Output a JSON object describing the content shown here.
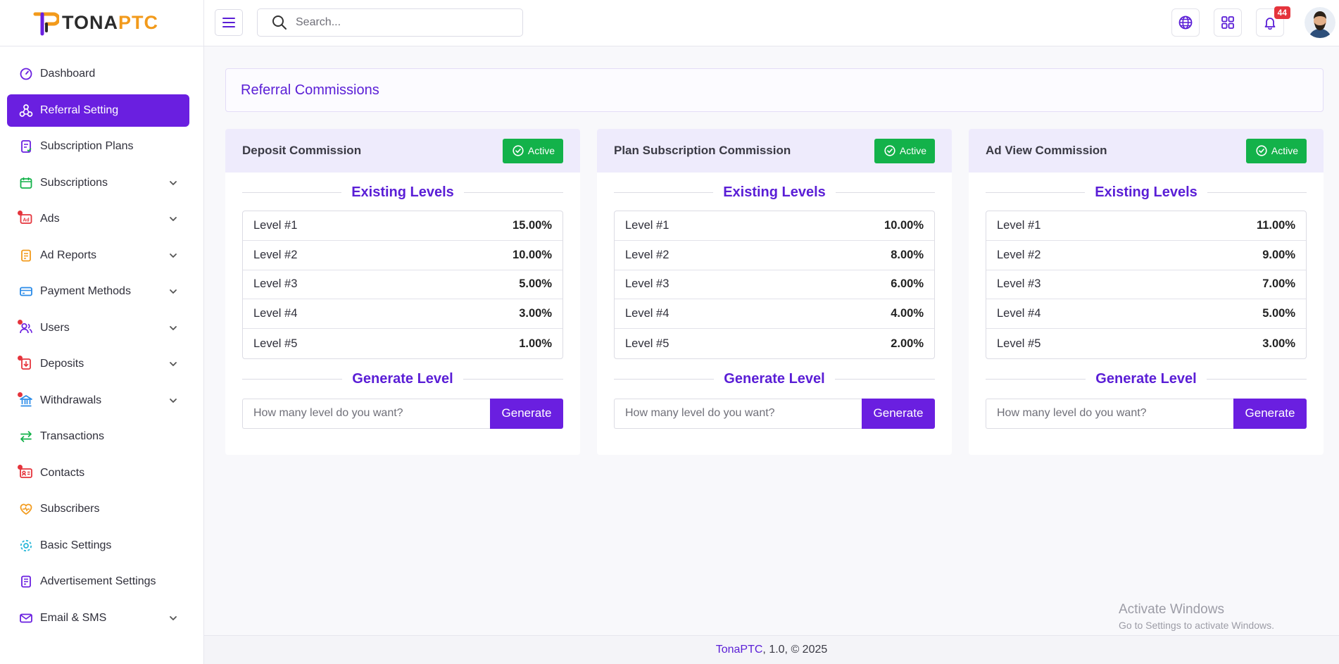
{
  "brand": {
    "logo_prefix": "TONA",
    "logo_suffix": "PTC"
  },
  "sidebar": {
    "items": [
      {
        "label": "Dashboard",
        "icon": "dashboard-icon",
        "color": "#6a1fe0",
        "active": false,
        "chevron": false,
        "dot": false
      },
      {
        "label": "Referral Setting",
        "icon": "referral-icon",
        "color": "#ffffff",
        "active": true,
        "chevron": false,
        "dot": false
      },
      {
        "label": "Subscription Plans",
        "icon": "plans-icon",
        "color": "#6a1fe0",
        "active": false,
        "chevron": false,
        "dot": false
      },
      {
        "label": "Subscriptions",
        "icon": "subscriptions-icon",
        "color": "#13b24a",
        "active": false,
        "chevron": true,
        "dot": false
      },
      {
        "label": "Ads",
        "icon": "ads-icon",
        "color": "#e5343c",
        "active": false,
        "chevron": true,
        "dot": true
      },
      {
        "label": "Ad Reports",
        "icon": "ad-reports-icon",
        "color": "#f29a1b",
        "active": false,
        "chevron": true,
        "dot": false
      },
      {
        "label": "Payment Methods",
        "icon": "payment-icon",
        "color": "#2a8be8",
        "active": false,
        "chevron": true,
        "dot": false
      },
      {
        "label": "Users",
        "icon": "users-icon",
        "color": "#6a1fe0",
        "active": false,
        "chevron": true,
        "dot": true
      },
      {
        "label": "Deposits",
        "icon": "deposits-icon",
        "color": "#e5343c",
        "active": false,
        "chevron": true,
        "dot": true
      },
      {
        "label": "Withdrawals",
        "icon": "withdrawals-icon",
        "color": "#2a8be8",
        "active": false,
        "chevron": true,
        "dot": true
      },
      {
        "label": "Transactions",
        "icon": "transactions-icon",
        "color": "#13b24a",
        "active": false,
        "chevron": false,
        "dot": false
      },
      {
        "label": "Contacts",
        "icon": "contacts-icon",
        "color": "#e5343c",
        "active": false,
        "chevron": false,
        "dot": true
      },
      {
        "label": "Subscribers",
        "icon": "subscribers-icon",
        "color": "#f29a1b",
        "active": false,
        "chevron": false,
        "dot": false
      },
      {
        "label": "Basic Settings",
        "icon": "settings-icon",
        "color": "#2ab8d8",
        "active": false,
        "chevron": false,
        "dot": false
      },
      {
        "label": "Advertisement Settings",
        "icon": "ad-settings-icon",
        "color": "#6a1fe0",
        "active": false,
        "chevron": false,
        "dot": false
      },
      {
        "label": "Email & SMS",
        "icon": "mail-icon",
        "color": "#6a1fe0",
        "active": false,
        "chevron": true,
        "dot": false
      }
    ]
  },
  "header": {
    "search_placeholder": "Search...",
    "notification_count": "44"
  },
  "page": {
    "title": "Referral Commissions"
  },
  "cards": [
    {
      "name": "Deposit Commission",
      "status": "Active",
      "existing_title": "Existing Levels",
      "levels": [
        {
          "label": "Level #1",
          "value": "15.00%"
        },
        {
          "label": "Level #2",
          "value": "10.00%"
        },
        {
          "label": "Level #3",
          "value": "5.00%"
        },
        {
          "label": "Level #4",
          "value": "3.00%"
        },
        {
          "label": "Level #5",
          "value": "1.00%"
        }
      ],
      "generate_title": "Generate Level",
      "input_placeholder": "How many level do you want?",
      "button": "Generate"
    },
    {
      "name": "Plan Subscription Commission",
      "status": "Active",
      "existing_title": "Existing Levels",
      "levels": [
        {
          "label": "Level #1",
          "value": "10.00%"
        },
        {
          "label": "Level #2",
          "value": "8.00%"
        },
        {
          "label": "Level #3",
          "value": "6.00%"
        },
        {
          "label": "Level #4",
          "value": "4.00%"
        },
        {
          "label": "Level #5",
          "value": "2.00%"
        }
      ],
      "generate_title": "Generate Level",
      "input_placeholder": "How many level do you want?",
      "button": "Generate"
    },
    {
      "name": "Ad View Commission",
      "status": "Active",
      "existing_title": "Existing Levels",
      "levels": [
        {
          "label": "Level #1",
          "value": "11.00%"
        },
        {
          "label": "Level #2",
          "value": "9.00%"
        },
        {
          "label": "Level #3",
          "value": "7.00%"
        },
        {
          "label": "Level #4",
          "value": "5.00%"
        },
        {
          "label": "Level #5",
          "value": "3.00%"
        }
      ],
      "generate_title": "Generate Level",
      "input_placeholder": "How many level do you want?",
      "button": "Generate"
    }
  ],
  "watermark": {
    "line1": "Activate Windows",
    "line2": "Go to Settings to activate Windows."
  },
  "footer": {
    "brand": "TonaPTC",
    "rest": ", 1.0, © 2025"
  }
}
